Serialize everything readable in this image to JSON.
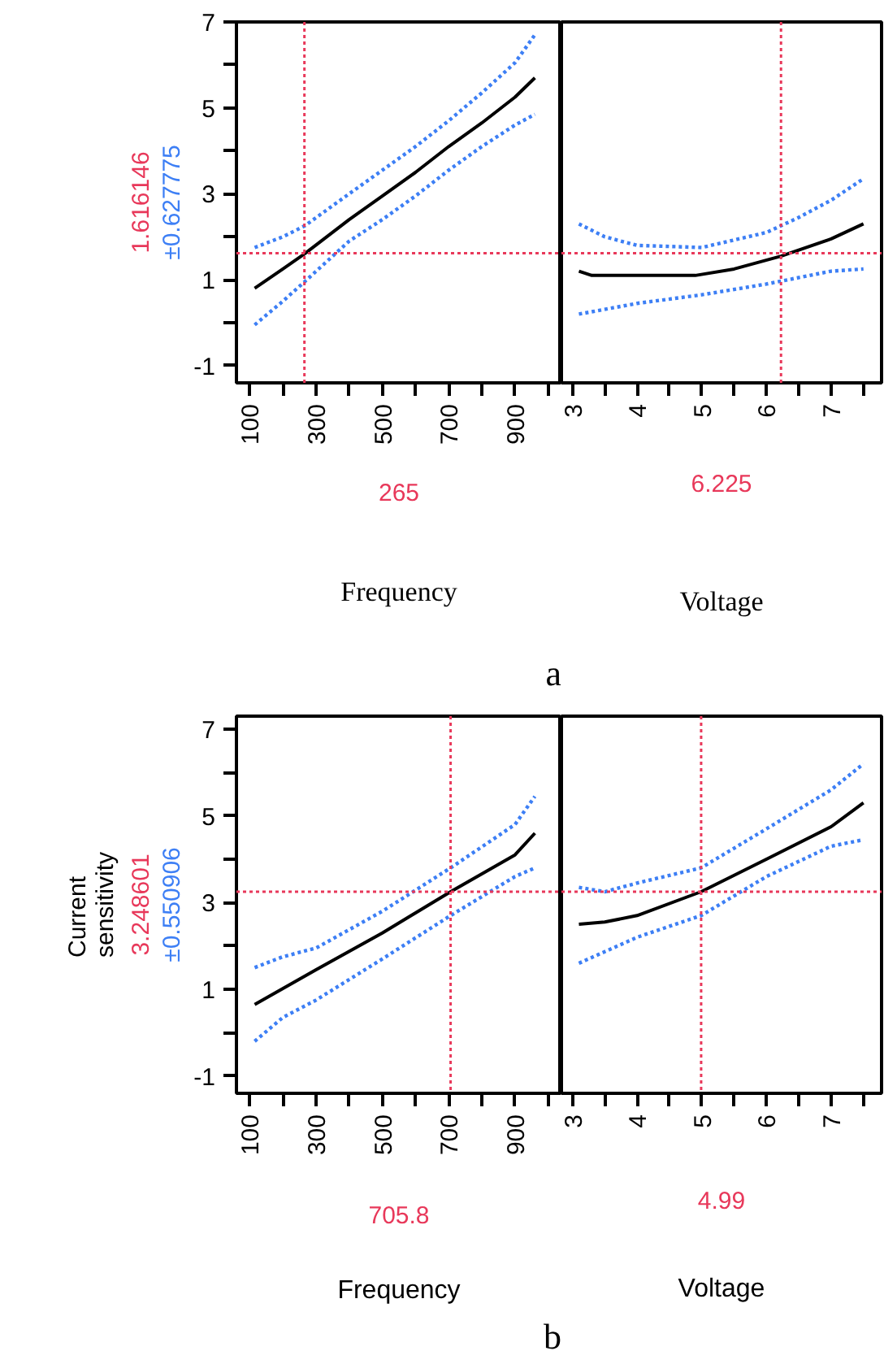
{
  "chart_data": [
    {
      "type": "line",
      "xlabel": "Frequency",
      "xlim": [
        60,
        1040
      ],
      "ylim": [
        -1.4,
        7
      ],
      "xticks": [
        100,
        {
          "value": 200,
          "label": null
        },
        300,
        {
          "value": 400,
          "label": null
        },
        500,
        {
          "value": 600,
          "label": null
        },
        700,
        {
          "value": 800,
          "label": null
        },
        900,
        {
          "value": 1000,
          "label": null
        }
      ],
      "yticks": [
        -1,
        {
          "value": 0,
          "label": null
        },
        1,
        {
          "value": 2,
          "label": null
        },
        3,
        {
          "value": 4,
          "label": null
        },
        5,
        {
          "value": 6,
          "label": null
        },
        7
      ],
      "grid": false,
      "series": [
        {
          "color": "#000000",
          "line_style": "solid",
          "x": [
            115,
            200,
            265,
            400,
            500,
            600,
            700,
            800,
            900,
            960
          ],
          "values": [
            0.8,
            1.25,
            1.6,
            2.4,
            2.95,
            3.5,
            4.1,
            4.65,
            5.25,
            5.7
          ]
        },
        {
          "color": "#3d7ff5",
          "line_style": "dotted",
          "x": [
            115,
            200,
            265,
            400,
            500,
            600,
            700,
            800,
            900,
            960
          ],
          "values": [
            1.75,
            2.0,
            2.25,
            3.0,
            3.55,
            4.1,
            4.7,
            5.35,
            6.05,
            6.7
          ]
        },
        {
          "color": "#3d7ff5",
          "line_style": "dotted",
          "x": [
            115,
            200,
            265,
            400,
            500,
            600,
            700,
            800,
            900,
            960
          ],
          "values": [
            -0.05,
            0.5,
            0.95,
            1.9,
            2.4,
            2.95,
            3.55,
            4.1,
            4.6,
            4.85
          ]
        }
      ],
      "ref_lines": [
        {
          "axis": "x",
          "value": 265,
          "label": "265",
          "color": "#e8385a",
          "line_style": "dotted"
        },
        {
          "axis": "y",
          "value": 1.616146,
          "label": "1.616146",
          "color": "#e8385a",
          "line_style": "dotted"
        }
      ],
      "annotations": [
        "±0.627775",
        "a"
      ]
    },
    {
      "type": "line",
      "xlabel": "Voltage",
      "xlim": [
        2.83,
        7.78
      ],
      "ylim": [
        -1.4,
        7
      ],
      "tick_labels": "x",
      "xticks": [
        3,
        {
          "value": 3.5,
          "label": null
        },
        4,
        {
          "value": 4.5,
          "label": null
        },
        5,
        {
          "value": 5.5,
          "label": null
        },
        6,
        {
          "value": 6.5,
          "label": null
        },
        7,
        {
          "value": 7.5,
          "label": null
        }
      ],
      "grid": false,
      "series": [
        {
          "color": "#000000",
          "line_style": "solid",
          "x": [
            3.1,
            3.3,
            4.0,
            4.9,
            5.5,
            6.225,
            7.0,
            7.5
          ],
          "values": [
            1.2,
            1.1,
            1.1,
            1.1,
            1.25,
            1.55,
            1.95,
            2.3
          ]
        },
        {
          "color": "#3d7ff5",
          "line_style": "dotted",
          "x": [
            3.1,
            3.5,
            4.0,
            5.0,
            6.0,
            6.5,
            7.0,
            7.5
          ],
          "values": [
            2.3,
            2.0,
            1.8,
            1.75,
            2.1,
            2.45,
            2.85,
            3.35
          ]
        },
        {
          "color": "#3d7ff5",
          "line_style": "dotted",
          "x": [
            3.1,
            4.0,
            5.0,
            6.0,
            7.0,
            7.5
          ],
          "values": [
            0.2,
            0.45,
            0.65,
            0.9,
            1.2,
            1.25
          ]
        }
      ],
      "ref_lines": [
        {
          "axis": "x",
          "value": 6.225,
          "label": "6.225",
          "color": "#e8385a",
          "line_style": "dotted"
        },
        {
          "axis": "y",
          "value": 1.616146,
          "label": null,
          "color": "#e8385a",
          "line_style": "dotted"
        }
      ]
    },
    {
      "type": "line",
      "xlabel": "Frequency",
      "ylabel": "Current sensitivity",
      "xlim": [
        60,
        1040
      ],
      "ylim": [
        -1.4,
        7.3
      ],
      "xticks": [
        100,
        {
          "value": 200,
          "label": null
        },
        300,
        {
          "value": 400,
          "label": null
        },
        500,
        {
          "value": 600,
          "label": null
        },
        700,
        {
          "value": 800,
          "label": null
        },
        900,
        {
          "value": 1000,
          "label": null
        }
      ],
      "yticks": [
        -1,
        {
          "value": 0,
          "label": null
        },
        1,
        {
          "value": 2,
          "label": null
        },
        3,
        {
          "value": 4,
          "label": null
        },
        5,
        {
          "value": 6,
          "label": null
        },
        7
      ],
      "grid": false,
      "series": [
        {
          "color": "#000000",
          "line_style": "solid",
          "x": [
            115,
            300,
            500,
            705.8,
            900,
            960
          ],
          "values": [
            0.65,
            1.45,
            2.3,
            3.25,
            4.1,
            4.6
          ]
        },
        {
          "color": "#3d7ff5",
          "line_style": "dotted",
          "x": [
            115,
            200,
            300,
            500,
            705.8,
            900,
            960
          ],
          "values": [
            1.5,
            1.75,
            1.95,
            2.8,
            3.8,
            4.8,
            5.45
          ]
        },
        {
          "color": "#3d7ff5",
          "line_style": "dotted",
          "x": [
            115,
            200,
            300,
            500,
            705.8,
            900,
            960
          ],
          "values": [
            -0.2,
            0.35,
            0.75,
            1.7,
            2.7,
            3.6,
            3.8
          ]
        }
      ],
      "ref_lines": [
        {
          "axis": "x",
          "value": 705.8,
          "label": "705.8",
          "color": "#e8385a",
          "line_style": "dotted"
        },
        {
          "axis": "y",
          "value": 3.248601,
          "label": "3.248601",
          "color": "#e8385a",
          "line_style": "dotted"
        }
      ],
      "annotations": [
        "±0.550906",
        "b"
      ]
    },
    {
      "type": "line",
      "xlabel": "Voltage",
      "xlim": [
        2.83,
        7.78
      ],
      "ylim": [
        -1.4,
        7.3
      ],
      "tick_labels": "x",
      "xticks": [
        3,
        {
          "value": 3.5,
          "label": null
        },
        4,
        {
          "value": 4.5,
          "label": null
        },
        5,
        {
          "value": 5.5,
          "label": null
        },
        6,
        {
          "value": 6.5,
          "label": null
        },
        7,
        {
          "value": 7.5,
          "label": null
        }
      ],
      "grid": false,
      "series": [
        {
          "color": "#000000",
          "line_style": "solid",
          "x": [
            3.1,
            3.5,
            4.0,
            4.99,
            6.0,
            7.0,
            7.5
          ],
          "values": [
            2.5,
            2.55,
            2.7,
            3.25,
            4.0,
            4.75,
            5.3
          ]
        },
        {
          "color": "#3d7ff5",
          "line_style": "dotted",
          "x": [
            3.1,
            3.5,
            4.0,
            4.99,
            6.0,
            7.0,
            7.5
          ],
          "values": [
            3.35,
            3.25,
            3.45,
            3.8,
            4.7,
            5.6,
            6.2
          ]
        },
        {
          "color": "#3d7ff5",
          "line_style": "dotted",
          "x": [
            3.1,
            4.0,
            4.99,
            6.0,
            7.0,
            7.5
          ],
          "values": [
            1.6,
            2.2,
            2.7,
            3.6,
            4.3,
            4.45
          ]
        }
      ],
      "ref_lines": [
        {
          "axis": "x",
          "value": 4.99,
          "label": "4.99",
          "color": "#e8385a",
          "line_style": "dotted"
        },
        {
          "axis": "y",
          "value": 3.248601,
          "label": null,
          "color": "#e8385a",
          "line_style": "dotted"
        }
      ]
    }
  ]
}
